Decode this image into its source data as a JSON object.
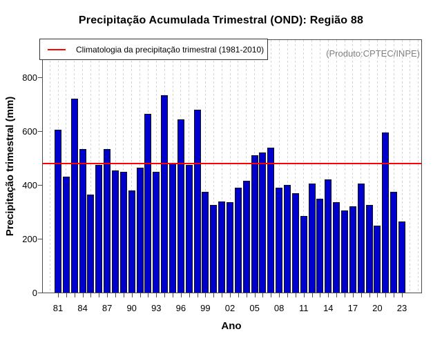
{
  "colors": {
    "bar": "#0000CC",
    "bar_border": "#111111",
    "climatology_line": "#FF0000",
    "grid": "#D4D4D4",
    "axis": "#4A4A4A",
    "annotation_text": "#808080"
  },
  "chart_data": {
    "type": "bar",
    "title": "Precipitação Acumulada Trimestral (OND): Região 88",
    "xlabel": "Ano",
    "ylabel": "Precipitação trimestral (mm)",
    "years": [
      1981,
      1982,
      1983,
      1984,
      1985,
      1986,
      1987,
      1988,
      1989,
      1990,
      1991,
      1992,
      1993,
      1994,
      1995,
      1996,
      1997,
      1998,
      1999,
      2000,
      2001,
      2002,
      2003,
      2004,
      2005,
      2006,
      2007,
      2008,
      2009,
      2010,
      2011,
      2012,
      2013,
      2014,
      2015,
      2016,
      2017,
      2018,
      2019,
      2020,
      2021,
      2022,
      2023
    ],
    "values": [
      605,
      430,
      720,
      535,
      365,
      475,
      535,
      455,
      450,
      380,
      465,
      665,
      450,
      735,
      480,
      645,
      475,
      680,
      375,
      325,
      340,
      335,
      390,
      415,
      510,
      520,
      540,
      390,
      400,
      370,
      285,
      405,
      350,
      420,
      335,
      305,
      320,
      405,
      325,
      250,
      595,
      375,
      265
    ],
    "x_tick_labels": [
      "81",
      "84",
      "87",
      "90",
      "93",
      "96",
      "99",
      "02",
      "05",
      "08",
      "11",
      "14",
      "17",
      "20",
      "23"
    ],
    "x_tick_label_step": 3,
    "y_ticks": [
      0,
      200,
      400,
      600,
      800
    ],
    "ylim": [
      0,
      940
    ],
    "grid": "vertical-dashed",
    "legend_position": "top-left",
    "climatology": {
      "label": "Climatologia da precipitação trimestral (1981-2010)",
      "value": 480,
      "color": "#FF0000"
    },
    "annotation": "(Produto:CPTEC/INPE)"
  }
}
